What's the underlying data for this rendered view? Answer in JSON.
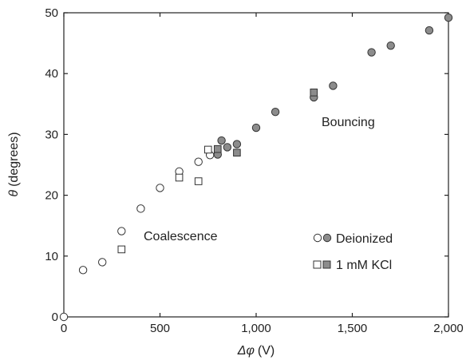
{
  "chart_data": {
    "type": "scatter",
    "title": "",
    "xlabel_symbol": "Δφ",
    "xlabel_unit": "(V)",
    "ylabel_symbol": "θ",
    "ylabel_unit": "(degrees)",
    "xlim": [
      0,
      2000
    ],
    "ylim": [
      0,
      50
    ],
    "x_ticks": [
      0,
      500,
      1000,
      1500,
      2000
    ],
    "x_tick_labels": [
      "0",
      "500",
      "1,000",
      "1,500",
      "2,000"
    ],
    "y_ticks": [
      0,
      10,
      20,
      30,
      40,
      50
    ],
    "y_tick_labels": [
      "0",
      "10",
      "20",
      "30",
      "40",
      "50"
    ],
    "grid": false,
    "legend_position": "bottom-right",
    "regions": {
      "coalescence": "Coalescence",
      "bouncing": "Bouncing"
    },
    "series": [
      {
        "name": "Deionized",
        "marker": "circle",
        "state": "coalescence",
        "filled": false,
        "points": [
          [
            0,
            0
          ],
          [
            100,
            7.7
          ],
          [
            200,
            9
          ],
          [
            300,
            14.1
          ],
          [
            400,
            17.8
          ],
          [
            500,
            21.2
          ],
          [
            600,
            23.9
          ],
          [
            700,
            25.5
          ],
          [
            760,
            26.6
          ]
        ]
      },
      {
        "name": "Deionized",
        "marker": "circle",
        "state": "bouncing",
        "filled": true,
        "points": [
          [
            800,
            26.7
          ],
          [
            820,
            29
          ],
          [
            850,
            27.9
          ],
          [
            900,
            28.4
          ],
          [
            1000,
            31.1
          ],
          [
            1100,
            33.7
          ],
          [
            1300,
            36.1
          ],
          [
            1400,
            38
          ],
          [
            1600,
            43.5
          ],
          [
            1700,
            44.6
          ],
          [
            1900,
            47.1
          ],
          [
            2000,
            49.2
          ]
        ]
      },
      {
        "name": "1 mM KCl",
        "marker": "square",
        "state": "coalescence",
        "filled": false,
        "points": [
          [
            300,
            11.1
          ],
          [
            600,
            22.9
          ],
          [
            700,
            22.3
          ],
          [
            750,
            27.5
          ]
        ]
      },
      {
        "name": "1 mM KCl",
        "marker": "square",
        "state": "bouncing",
        "filled": true,
        "points": [
          [
            800,
            27.6
          ],
          [
            900,
            27
          ],
          [
            1300,
            36.9
          ]
        ]
      }
    ],
    "legend": [
      {
        "label": "Deionized",
        "marker": "circle"
      },
      {
        "label": "1 mM KCl",
        "marker": "square"
      }
    ]
  },
  "colors": {
    "filled_marker": "#8c8c8c",
    "marker_stroke": "#333333",
    "axis": "#222222"
  }
}
